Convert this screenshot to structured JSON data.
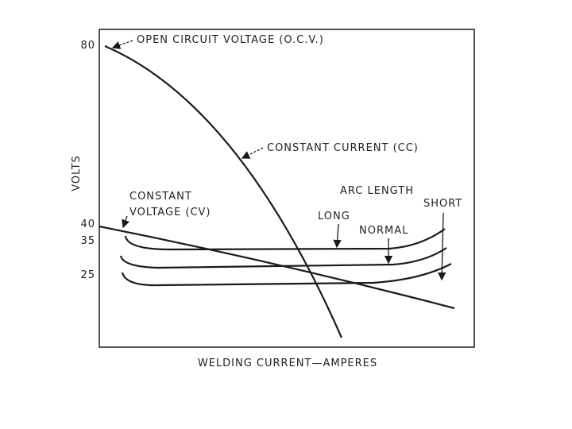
{
  "axis": {
    "y_label": "VOLTS",
    "x_label": "WELDING CURRENT—AMPERES",
    "y_ticks": [
      "80",
      "40",
      "35",
      "25"
    ]
  },
  "labels": {
    "ocv": "OPEN CIRCUIT VOLTAGE (O.C.V.)",
    "cc": "CONSTANT CURRENT (CC)",
    "cv_line1": "CONSTANT",
    "cv_line2": "VOLTAGE (CV)",
    "arc_length": "ARC LENGTH",
    "long": "LONG",
    "normal": "NORMAL",
    "short": "SHORT"
  }
}
